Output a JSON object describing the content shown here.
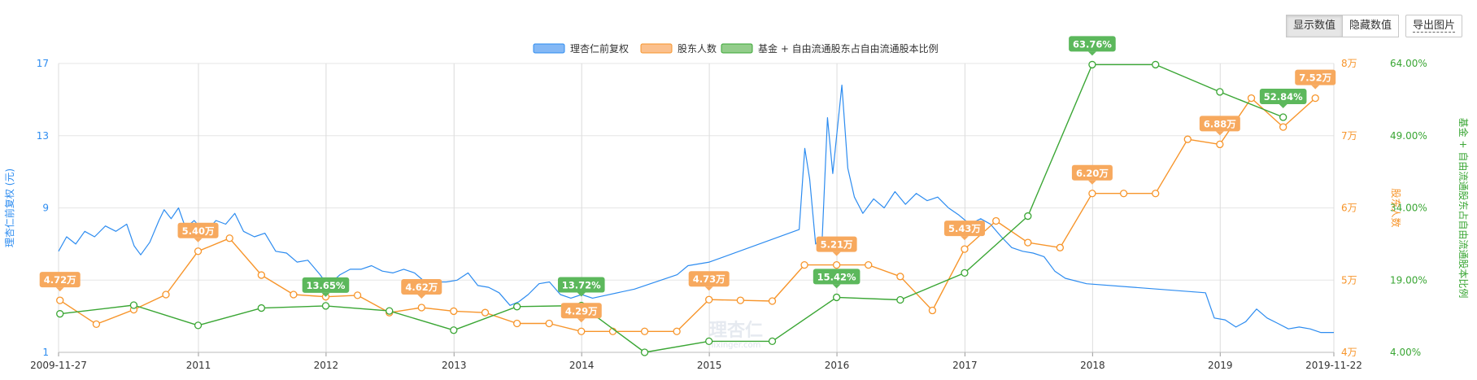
{
  "toolbar": {
    "show_values": "显示数值",
    "hide_values": "隐藏数值",
    "export_image": "导出图片"
  },
  "watermark": {
    "logo": "理杏仁",
    "url": "lixinger.com"
  },
  "colors": {
    "price": "#2d8cf0",
    "holders": "#f7952b",
    "ratio": "#3aa634",
    "grid": "#e6e6e6"
  },
  "chart_data": {
    "type": "line",
    "legend": [
      "理杏仁前复权",
      "股东人数",
      "基金 + 自由流通股东占自由流通股本比例"
    ],
    "legend_position": "top-center",
    "x_axis": {
      "start": "2009-11-27",
      "end": "2019-11-22",
      "ticks": [
        "2009-11-27",
        "2011",
        "2012",
        "2013",
        "2014",
        "2015",
        "2016",
        "2017",
        "2018",
        "2019",
        "2019-11-22"
      ]
    },
    "y_left": {
      "label": "理杏仁前复权 (元)",
      "range": [
        1,
        17
      ],
      "ticks": [
        "1",
        "5",
        "9",
        "13",
        "17"
      ]
    },
    "y_right1": {
      "label": "股东人数",
      "range": [
        4,
        8
      ],
      "ticks": [
        "4万",
        "5万",
        "6万",
        "7万",
        "8万"
      ]
    },
    "y_right2": {
      "label": "基金 + 自由流通股东占自由流通股本比例",
      "range": [
        4,
        64
      ],
      "ticks": [
        "4.00%",
        "19.00%",
        "34.00%",
        "49.00%",
        "64.00%"
      ]
    },
    "series": [
      {
        "name": "理杏仁前复权",
        "axis": "y_left",
        "points": [
          [
            "2009-11-27",
            6.6
          ],
          [
            "2009-12-20",
            7.4
          ],
          [
            "2010-01-15",
            7.0
          ],
          [
            "2010-02-10",
            7.7
          ],
          [
            "2010-03-10",
            7.4
          ],
          [
            "2010-04-10",
            8.0
          ],
          [
            "2010-05-10",
            7.7
          ],
          [
            "2010-06-10",
            8.1
          ],
          [
            "2010-07-01",
            6.9
          ],
          [
            "2010-07-20",
            6.4
          ],
          [
            "2010-08-15",
            7.1
          ],
          [
            "2010-09-10",
            8.3
          ],
          [
            "2010-09-25",
            8.9
          ],
          [
            "2010-10-15",
            8.4
          ],
          [
            "2010-11-05",
            9.0
          ],
          [
            "2010-11-25",
            7.9
          ],
          [
            "2010-12-20",
            8.3
          ],
          [
            "2011-01-20",
            7.6
          ],
          [
            "2011-02-20",
            8.3
          ],
          [
            "2011-03-20",
            8.1
          ],
          [
            "2011-04-15",
            8.7
          ],
          [
            "2011-05-10",
            7.7
          ],
          [
            "2011-06-10",
            7.4
          ],
          [
            "2011-07-10",
            7.6
          ],
          [
            "2011-08-10",
            6.6
          ],
          [
            "2011-09-10",
            6.5
          ],
          [
            "2011-10-10",
            6.0
          ],
          [
            "2011-11-10",
            6.1
          ],
          [
            "2011-12-15",
            5.3
          ],
          [
            "2012-01-06",
            4.7
          ],
          [
            "2012-02-10",
            5.3
          ],
          [
            "2012-03-10",
            5.6
          ],
          [
            "2012-04-10",
            5.6
          ],
          [
            "2012-05-10",
            5.8
          ],
          [
            "2012-06-10",
            5.5
          ],
          [
            "2012-07-10",
            5.4
          ],
          [
            "2012-08-10",
            5.6
          ],
          [
            "2012-09-10",
            5.4
          ],
          [
            "2012-10-10",
            4.9
          ],
          [
            "2012-11-10",
            4.9
          ],
          [
            "2012-12-10",
            4.9
          ],
          [
            "2013-01-10",
            5.0
          ],
          [
            "2013-02-10",
            5.4
          ],
          [
            "2013-03-10",
            4.7
          ],
          [
            "2013-04-10",
            4.6
          ],
          [
            "2013-05-10",
            4.3
          ],
          [
            "2013-06-10",
            3.6
          ],
          [
            "2013-07-05",
            3.8
          ],
          [
            "2013-08-01",
            4.2
          ],
          [
            "2013-09-01",
            4.8
          ],
          [
            "2013-10-01",
            4.9
          ],
          [
            "2013-11-01",
            4.2
          ],
          [
            "2013-12-01",
            4.0
          ],
          [
            "2014-01-01",
            4.2
          ],
          [
            "2014-02-01",
            4.0
          ],
          [
            "2014-06-01",
            4.5
          ],
          [
            "2014-10-01",
            5.3
          ],
          [
            "2014-11-01",
            5.8
          ],
          [
            "2015-01-01",
            6.0
          ],
          [
            "2015-09-15",
            7.8
          ],
          [
            "2015-10-01",
            12.3
          ],
          [
            "2015-10-15",
            10.6
          ],
          [
            "2015-11-01",
            7.0
          ],
          [
            "2015-11-20",
            7.4
          ],
          [
            "2015-12-05",
            14.0
          ],
          [
            "2015-12-20",
            10.9
          ],
          [
            "2016-01-15",
            15.8
          ],
          [
            "2016-02-01",
            11.2
          ],
          [
            "2016-02-20",
            9.6
          ],
          [
            "2016-03-15",
            8.7
          ],
          [
            "2016-04-15",
            9.5
          ],
          [
            "2016-05-15",
            9.0
          ],
          [
            "2016-06-15",
            9.9
          ],
          [
            "2016-07-15",
            9.2
          ],
          [
            "2016-08-15",
            9.8
          ],
          [
            "2016-09-15",
            9.4
          ],
          [
            "2016-10-15",
            9.6
          ],
          [
            "2016-11-15",
            9.0
          ],
          [
            "2016-12-15",
            8.6
          ],
          [
            "2017-01-15",
            8.1
          ],
          [
            "2017-02-15",
            8.4
          ],
          [
            "2017-03-15",
            8.1
          ],
          [
            "2017-04-15",
            7.4
          ],
          [
            "2017-05-15",
            6.8
          ],
          [
            "2017-06-15",
            6.6
          ],
          [
            "2017-07-15",
            6.5
          ],
          [
            "2017-08-15",
            6.3
          ],
          [
            "2017-09-15",
            5.5
          ],
          [
            "2017-10-15",
            5.1
          ],
          [
            "2017-12-15",
            4.8
          ],
          [
            "2018-11-20",
            4.3
          ],
          [
            "2018-12-15",
            2.9
          ],
          [
            "2019-01-15",
            2.8
          ],
          [
            "2019-02-15",
            2.4
          ],
          [
            "2019-03-15",
            2.7
          ],
          [
            "2019-04-15",
            3.4
          ],
          [
            "2019-05-15",
            2.9
          ],
          [
            "2019-06-15",
            2.6
          ],
          [
            "2019-07-15",
            2.3
          ],
          [
            "2019-08-15",
            2.4
          ],
          [
            "2019-09-15",
            2.3
          ],
          [
            "2019-10-15",
            2.1
          ],
          [
            "2019-11-22",
            2.1
          ]
        ]
      },
      {
        "name": "股东人数",
        "axis": "y_right1",
        "points": [
          [
            "2009-12-01",
            4.72
          ],
          [
            "2010-03-15",
            4.39
          ],
          [
            "2010-06-30",
            4.59
          ],
          [
            "2010-09-30",
            4.8
          ],
          [
            "2010-12-31",
            5.4
          ],
          [
            "2011-03-31",
            5.58
          ],
          [
            "2011-06-30",
            5.07
          ],
          [
            "2011-09-30",
            4.8
          ],
          [
            "2011-12-31",
            4.77
          ],
          [
            "2012-03-31",
            4.79
          ],
          [
            "2012-06-30",
            4.55
          ],
          [
            "2012-09-30",
            4.62
          ],
          [
            "2012-12-31",
            4.57
          ],
          [
            "2013-03-31",
            4.55
          ],
          [
            "2013-06-30",
            4.4
          ],
          [
            "2013-09-30",
            4.4
          ],
          [
            "2013-12-31",
            4.29
          ],
          [
            "2014-03-31",
            4.29
          ],
          [
            "2014-06-30",
            4.29
          ],
          [
            "2014-09-30",
            4.29
          ],
          [
            "2014-12-31",
            4.73
          ],
          [
            "2015-03-31",
            4.72
          ],
          [
            "2015-06-30",
            4.71
          ],
          [
            "2015-09-30",
            5.21
          ],
          [
            "2015-12-31",
            5.21
          ],
          [
            "2016-03-31",
            5.21
          ],
          [
            "2016-06-30",
            5.05
          ],
          [
            "2016-09-30",
            4.58
          ],
          [
            "2016-12-31",
            5.43
          ],
          [
            "2017-03-31",
            5.82
          ],
          [
            "2017-06-30",
            5.52
          ],
          [
            "2017-09-30",
            5.45
          ],
          [
            "2017-12-31",
            6.2
          ],
          [
            "2018-03-31",
            6.2
          ],
          [
            "2018-06-30",
            6.2
          ],
          [
            "2018-09-30",
            6.95
          ],
          [
            "2018-12-31",
            6.88
          ],
          [
            "2019-03-31",
            7.52
          ],
          [
            "2019-06-30",
            7.12
          ],
          [
            "2019-09-30",
            7.52
          ]
        ]
      },
      {
        "name": "基金 + 自由流通股东占自由流通股本比例",
        "axis": "y_right2",
        "points": [
          [
            "2009-12-01",
            12.0
          ],
          [
            "2010-06-30",
            13.8
          ],
          [
            "2010-12-31",
            9.6
          ],
          [
            "2011-06-30",
            13.2
          ],
          [
            "2011-12-31",
            13.65
          ],
          [
            "2012-06-30",
            12.6
          ],
          [
            "2012-12-31",
            8.6
          ],
          [
            "2013-06-30",
            13.5
          ],
          [
            "2013-12-31",
            13.72
          ],
          [
            "2014-06-30",
            4.0
          ],
          [
            "2014-12-31",
            6.3
          ],
          [
            "2015-06-30",
            6.3
          ],
          [
            "2015-12-31",
            15.42
          ],
          [
            "2016-06-30",
            14.9
          ],
          [
            "2016-12-31",
            20.5
          ],
          [
            "2017-06-30",
            32.3
          ],
          [
            "2017-12-31",
            63.76
          ],
          [
            "2018-06-30",
            63.76
          ],
          [
            "2018-12-31",
            58.1
          ],
          [
            "2019-06-30",
            52.84
          ]
        ]
      }
    ],
    "data_labels": [
      {
        "series": 1,
        "index": 0,
        "text": "4.72万"
      },
      {
        "series": 1,
        "index": 4,
        "text": "5.40万"
      },
      {
        "series": 1,
        "index": 11,
        "text": "4.62万"
      },
      {
        "series": 1,
        "index": 16,
        "text": "4.29万"
      },
      {
        "series": 1,
        "index": 20,
        "text": "4.73万"
      },
      {
        "series": 1,
        "index": 24,
        "text": "5.21万"
      },
      {
        "series": 1,
        "index": 28,
        "text": "5.43万"
      },
      {
        "series": 1,
        "index": 32,
        "text": "6.20万"
      },
      {
        "series": 1,
        "index": 36,
        "text": "6.88万"
      },
      {
        "series": 1,
        "index": 39,
        "text": "7.52万"
      },
      {
        "series": 2,
        "index": 4,
        "text": "13.65%"
      },
      {
        "series": 2,
        "index": 8,
        "text": "13.72%"
      },
      {
        "series": 2,
        "index": 12,
        "text": "15.42%"
      },
      {
        "series": 2,
        "index": 16,
        "text": "63.76%"
      },
      {
        "series": 2,
        "index": 19,
        "text": "52.84%"
      }
    ],
    "grid": true
  }
}
